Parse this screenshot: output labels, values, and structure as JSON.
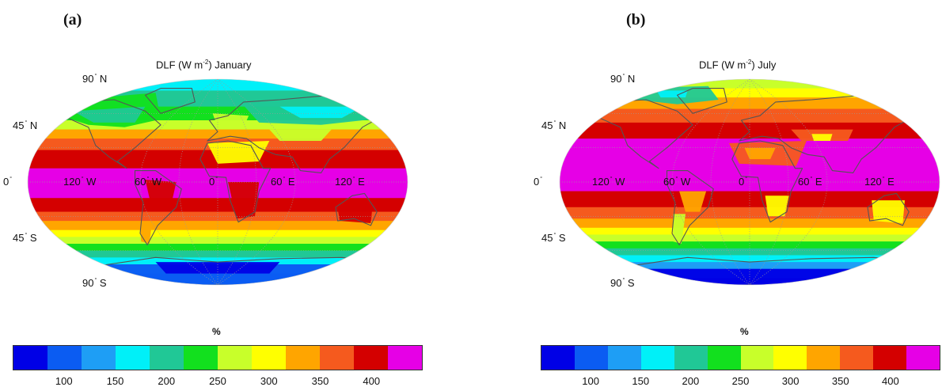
{
  "panels": [
    {
      "label": "(a)",
      "title_text": "DLF (W m",
      "title_exp": "-2",
      "title_suffix": ") January",
      "lat_labels": [
        "90",
        "N",
        "45",
        "N",
        "0",
        "45",
        "S",
        "90",
        "S"
      ],
      "lon_labels": [
        "120",
        "W",
        "60",
        "W",
        "0",
        "60",
        "E",
        "120",
        "E"
      ],
      "colorbar_title": "%"
    },
    {
      "label": "(b)",
      "title_text": "DLF (W m",
      "title_exp": "-2",
      "title_suffix": ") July",
      "lat_labels": [
        "90",
        "N",
        "45",
        "N",
        "0",
        "45",
        "S",
        "90",
        "S"
      ],
      "lon_labels": [
        "120",
        "W",
        "60",
        "W",
        "0",
        "60",
        "E",
        "120",
        "E"
      ],
      "colorbar_title": "%"
    }
  ],
  "colorbar": {
    "ticks": [
      "100",
      "150",
      "200",
      "250",
      "300",
      "350",
      "400"
    ],
    "colors": [
      "#0000e6",
      "#0b5cf2",
      "#1e9ef5",
      "#00f0f8",
      "#20c896",
      "#12e01e",
      "#c8ff2a",
      "#ffff00",
      "#ffa500",
      "#f55a1e",
      "#d40000",
      "#e600e6"
    ]
  },
  "legend": {
    "colors": {
      "bg": "#ffffff",
      "coast": "#555555",
      "grid": "#9a9a9a"
    }
  }
}
